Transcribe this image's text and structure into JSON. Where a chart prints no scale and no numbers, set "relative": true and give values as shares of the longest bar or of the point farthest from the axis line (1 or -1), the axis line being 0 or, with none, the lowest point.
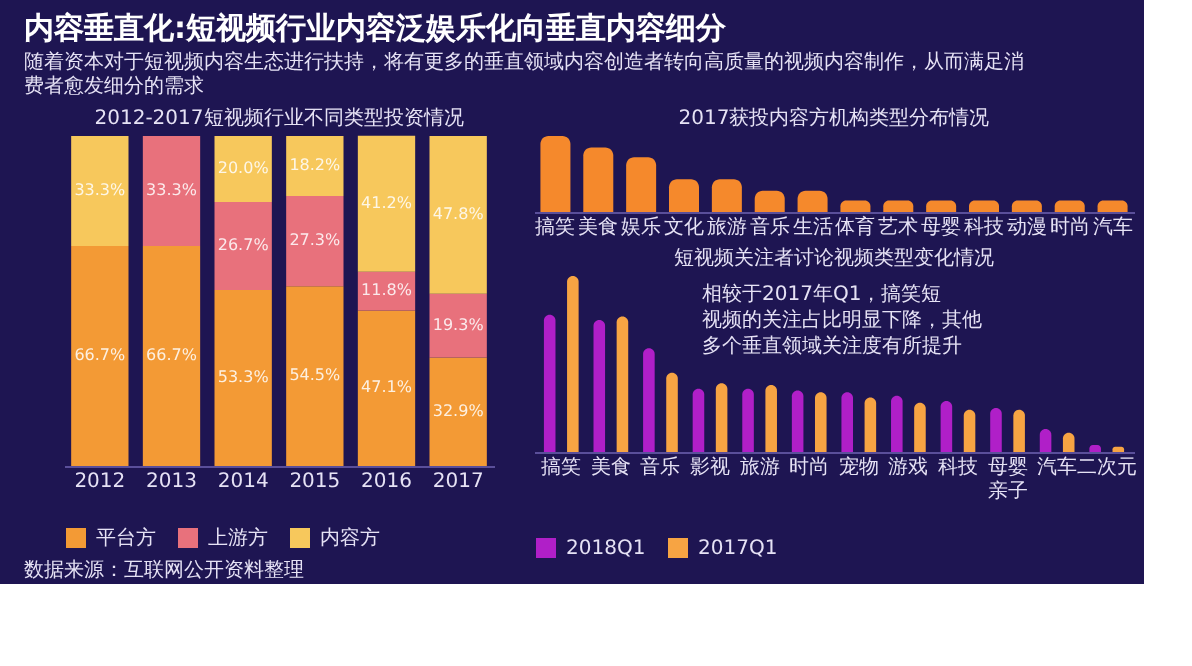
{
  "chart_data": [
    {
      "type": "other",
      "title": "内容垂直化:短视频行业内容泛娱乐化向垂直内容细分",
      "subtitle": "随着资本对于短视频内容生态进行扶持，将有更多的垂直领域内容创造者转向高质量的视频内容制作，从而满足消费者愈发细分的需求"
    },
    {
      "type": "bar",
      "title": "2012-2017短视频行业不同类型投资情况",
      "categories": [
        "2012",
        "2013",
        "2014",
        "2015",
        "2016",
        "2017"
      ],
      "stacked": true,
      "ylim": [
        0,
        100
      ],
      "legend": "bottom",
      "series": [
        {
          "name": "平台方",
          "color": "#f39a35",
          "values": [
            66.7,
            66.7,
            53.3,
            54.5,
            47.1,
            32.9
          ],
          "value_labels": [
            "66.7%",
            "66.7%",
            "53.3%",
            "54.5%",
            "47.1%",
            "32.9%"
          ]
        },
        {
          "name": "上游方",
          "color": "#e8717c",
          "values": [
            0,
            33.3,
            26.7,
            27.3,
            11.8,
            19.3
          ],
          "value_labels": [
            null,
            "33.3%",
            "26.7%",
            "27.3%",
            "11.8%",
            "19.3%"
          ]
        },
        {
          "name": "内容方",
          "color": "#f7c85c",
          "values": [
            33.3,
            0,
            20.0,
            18.2,
            41.2,
            47.8
          ],
          "value_labels": [
            "33.3%",
            null,
            "20.0%",
            "18.2%",
            "41.2%",
            "47.8%"
          ]
        }
      ],
      "annotations": [
        "数据来源：互联网公开资料整理"
      ]
    },
    {
      "type": "bar",
      "title": "2017获投内容方机构类型分布情况",
      "relative": true,
      "color": "#f5892c",
      "categories": [
        "搞笑",
        "美食",
        "娱乐",
        "文化",
        "旅游",
        "音乐",
        "生活",
        "体育",
        "艺术",
        "母婴",
        "科技",
        "动漫",
        "时尚",
        "汽车"
      ],
      "values": [
        1,
        0.85,
        0.72,
        0.43,
        0.43,
        0.28,
        0.28,
        0.15,
        0.15,
        0.15,
        0.15,
        0.15,
        0.15,
        0.15
      ]
    },
    {
      "type": "bar",
      "title": "短视频关注者讨论视频类型变化情况",
      "relative": true,
      "legend": "bottom",
      "categories": [
        "搞笑",
        "美食",
        "音乐",
        "影视",
        "旅游",
        "时尚",
        "宠物",
        "游戏",
        "科技",
        "母婴亲子",
        "汽车",
        "二次元"
      ],
      "series": [
        {
          "name": "2018Q1",
          "color": "#b01fc8",
          "values": [
            0.78,
            0.75,
            0.59,
            0.36,
            0.36,
            0.35,
            0.34,
            0.32,
            0.29,
            0.25,
            0.13,
            0.04
          ]
        },
        {
          "name": "2017Q1",
          "color": "#f7a443",
          "values": [
            1,
            0.77,
            0.45,
            0.39,
            0.38,
            0.34,
            0.31,
            0.28,
            0.24,
            0.24,
            0.11,
            0.03
          ]
        }
      ],
      "annotations": [
        "相较于2017年Q1，搞笑短视频的关注占比明显下降，其他多个垂直领域关注度有所提升"
      ]
    }
  ]
}
